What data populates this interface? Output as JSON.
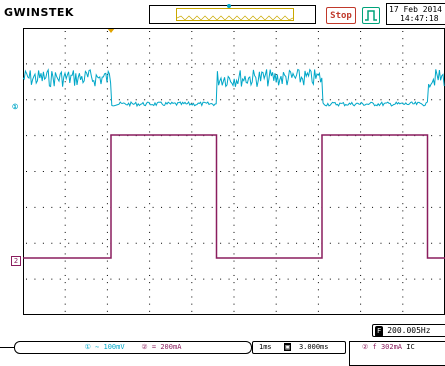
{
  "header": {
    "brand": "GWINSTEK",
    "run_state": "Stop",
    "date": "17 Feb 2014",
    "time": "14:47:18"
  },
  "channels": {
    "ch1_marker": "①",
    "ch2_marker": "2",
    "ch1_scale": "① ∼ 100mV",
    "ch2_scale": "② = 200mA",
    "time_per_div": "1ms",
    "trigger_position": "3.000ms",
    "trigger_channel": "②",
    "trigger_edge": "f",
    "trigger_level": "302mA",
    "trigger_coupling": "IC"
  },
  "measurement": {
    "badge": "F",
    "frequency": "200.005Hz"
  },
  "colors": {
    "ch1": "#00a7c8",
    "ch2": "#8a1d5e",
    "trigger": "#e2a400",
    "grid": "#000000"
  },
  "icons": [
    "trigger-position-marker",
    "trigger-waveform-icon",
    "stop-indicator",
    "measure-badge-icon"
  ]
}
